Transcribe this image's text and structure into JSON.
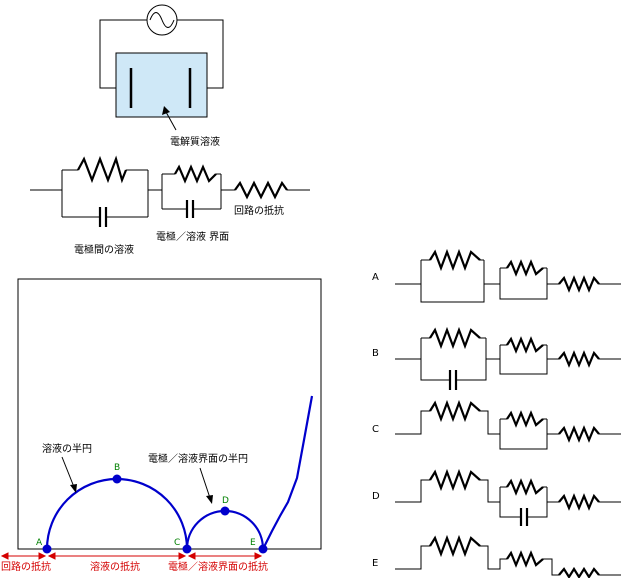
{
  "cell": {
    "electrolyte_label": "電解質溶液"
  },
  "equivalent": {
    "bulk_label": "電極間の溶液",
    "interface_label": "電極／溶液 界面",
    "circuit_label": "回路の抵抗"
  },
  "plot": {
    "bulk_arc_label": "溶液の半円",
    "interface_arc_label": "電極／溶液界面の半円",
    "points": [
      "A",
      "B",
      "C",
      "D",
      "E"
    ],
    "axis_labels": {
      "circuit": "回路の抵抗",
      "solution": "溶液の抵抗",
      "interface": "電極／溶液界面の抵抗"
    }
  },
  "options": [
    "A",
    "B",
    "C",
    "D",
    "E"
  ]
}
